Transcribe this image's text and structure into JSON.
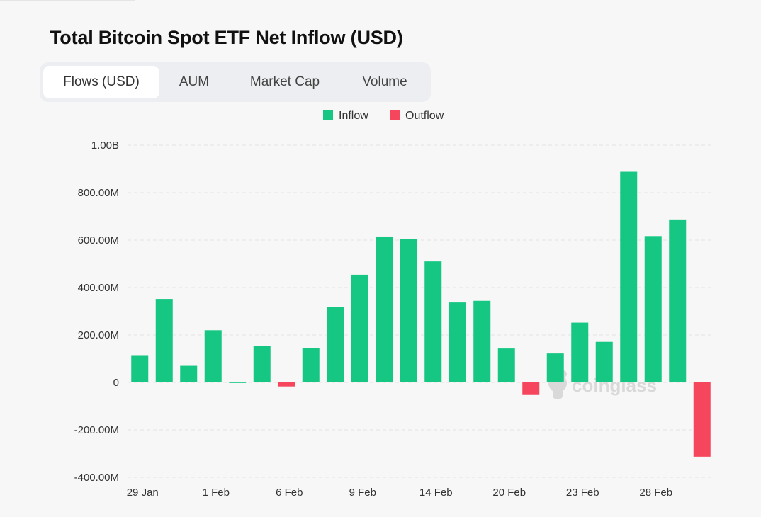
{
  "title": "Total Bitcoin Spot ETF Net Inflow (USD)",
  "tabs": [
    {
      "label": "Flows (USD)",
      "active": true
    },
    {
      "label": "AUM",
      "active": false
    },
    {
      "label": "Market Cap",
      "active": false
    },
    {
      "label": "Volume",
      "active": false
    }
  ],
  "watermark": "coinglass",
  "colors": {
    "inflow": "#16c784",
    "outflow": "#f6465d"
  },
  "chart_data": {
    "type": "bar",
    "legend": [
      {
        "name": "Inflow",
        "color": "#16c784"
      },
      {
        "name": "Outflow",
        "color": "#f6465d"
      }
    ],
    "legend_position": "top-center",
    "grid": true,
    "ylim": [
      -400000000,
      1000000000
    ],
    "y_ticks": [
      {
        "value": 1000000000,
        "label": "1.00B"
      },
      {
        "value": 800000000,
        "label": "800.00M"
      },
      {
        "value": 600000000,
        "label": "600.00M"
      },
      {
        "value": 400000000,
        "label": "400.00M"
      },
      {
        "value": 200000000,
        "label": "200.00M"
      },
      {
        "value": 0,
        "label": "0"
      },
      {
        "value": -200000000,
        "label": "-200.00M"
      },
      {
        "value": -400000000,
        "label": "-400.00M"
      }
    ],
    "x_tick_labels": [
      {
        "index": 0,
        "label": "29 Jan"
      },
      {
        "index": 3,
        "label": "1 Feb"
      },
      {
        "index": 6,
        "label": "6 Feb"
      },
      {
        "index": 9,
        "label": "9 Feb"
      },
      {
        "index": 12,
        "label": "14 Feb"
      },
      {
        "index": 15,
        "label": "20 Feb"
      },
      {
        "index": 18,
        "label": "23 Feb"
      },
      {
        "index": 21,
        "label": "28 Feb"
      }
    ],
    "values": [
      115000000,
      352000000,
      70000000,
      220000000,
      2000000,
      153000000,
      -17000000,
      144000000,
      319000000,
      454000000,
      615000000,
      603000000,
      510000000,
      337000000,
      344000000,
      143000000,
      -53000000,
      122000000,
      252000000,
      171000000,
      888000000,
      617000000,
      687000000,
      -313000000
    ]
  }
}
